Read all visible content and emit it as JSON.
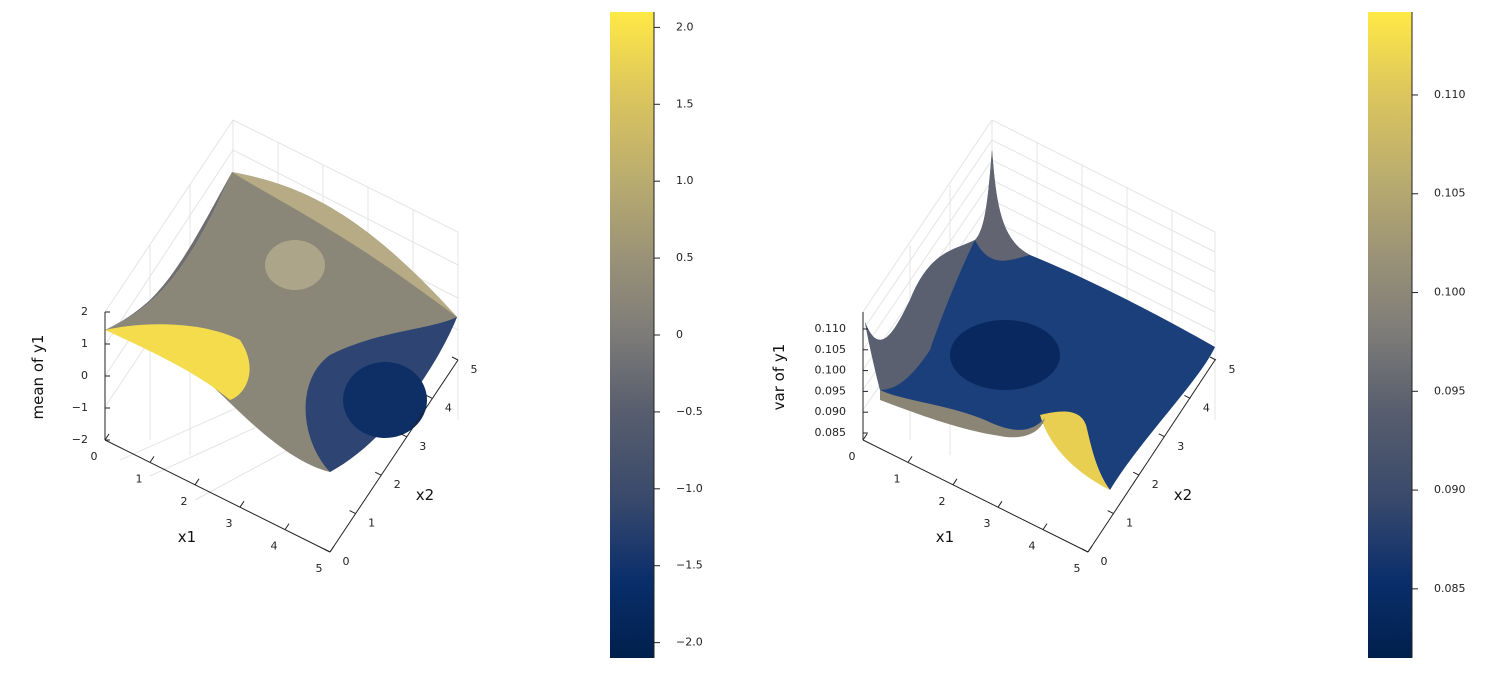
{
  "chart_data": [
    {
      "type": "surface",
      "xlabel": "x1",
      "ylabel": "x2",
      "zlabel": "mean of y1",
      "x_ticks": [
        "0",
        "1",
        "2",
        "3",
        "4",
        "5"
      ],
      "y_ticks": [
        "0",
        "1",
        "2",
        "3",
        "4",
        "5"
      ],
      "z_ticks": [
        "−2",
        "−1",
        "0",
        "1",
        "2"
      ],
      "xlim": [
        0,
        5
      ],
      "ylim": [
        0,
        5
      ],
      "zlim": [
        -2,
        2
      ],
      "grid": true,
      "colormap": "cividis",
      "colorbar": {
        "ticks": [
          "−2.0",
          "−1.5",
          "−1.0",
          "−0.5",
          "0",
          "0.5",
          "1.0",
          "1.5",
          "2.0"
        ],
        "tick_values": [
          -2.0,
          -1.5,
          -1.0,
          -0.5,
          0,
          0.5,
          1.0,
          1.5,
          2.0
        ],
        "range": [
          -2.1,
          2.1
        ]
      }
    },
    {
      "type": "surface",
      "xlabel": "x1",
      "ylabel": "x2",
      "zlabel": "var of y1",
      "x_ticks": [
        "0",
        "1",
        "2",
        "3",
        "4",
        "5"
      ],
      "y_ticks": [
        "0",
        "1",
        "2",
        "3",
        "4",
        "5"
      ],
      "z_ticks": [
        "0.085",
        "0.090",
        "0.095",
        "0.100",
        "0.105",
        "0.110"
      ],
      "xlim": [
        0,
        5
      ],
      "ylim": [
        0,
        5
      ],
      "zlim": [
        0.082,
        0.112
      ],
      "grid": true,
      "colormap": "cividis",
      "colorbar": {
        "ticks": [
          "0.085",
          "0.090",
          "0.095",
          "0.100",
          "0.105",
          "0.110"
        ],
        "tick_values": [
          0.085,
          0.09,
          0.095,
          0.1,
          0.105,
          0.11
        ],
        "range": [
          0.0815,
          0.1142
        ]
      }
    }
  ],
  "colors": {
    "cividis_low": "#00204c",
    "cividis_mid": "#7c7b78",
    "cividis_high": "#ffe945"
  }
}
